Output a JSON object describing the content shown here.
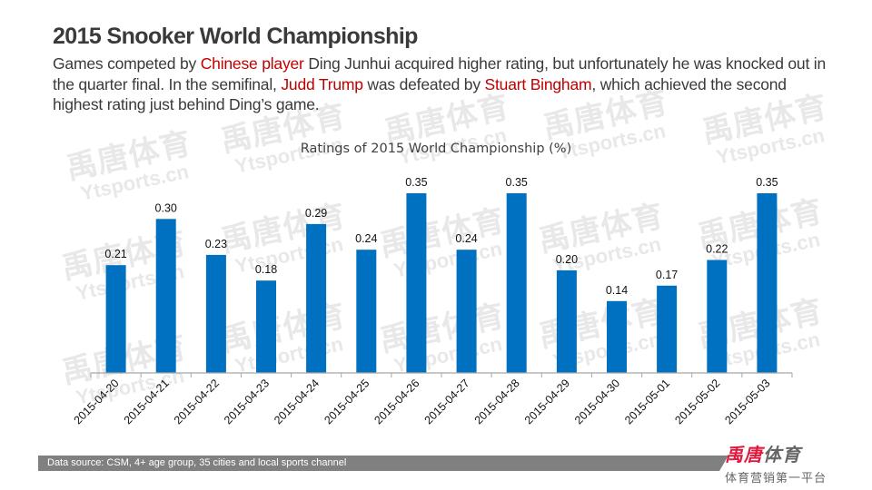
{
  "header": {
    "title": "2015 Snooker World Championship",
    "subtitle_parts": [
      {
        "text": "Games competed by ",
        "highlight": false
      },
      {
        "text": "Chinese player",
        "highlight": true
      },
      {
        "text": " Ding Junhui acquired higher rating, but unfortunately he was knocked out in the quarter final.  In the semifinal, ",
        "highlight": false
      },
      {
        "text": "Judd Trump",
        "highlight": true
      },
      {
        "text": " was defeated by ",
        "highlight": false
      },
      {
        "text": "Stuart Bingham",
        "highlight": true
      },
      {
        "text": ", which achieved the second highest rating just behind Ding’s game.",
        "highlight": false
      }
    ]
  },
  "colors": {
    "bar": "#0070c0",
    "highlight": "#c00000",
    "axis": "#a6a6a6",
    "footer_bg": "#808080",
    "logo_red": "#e0193c"
  },
  "watermark": {
    "cn": "禹唐体育",
    "en": "Ytsports.cn"
  },
  "chart_data": {
    "type": "bar",
    "title": "Ratings of 2015 World Championship (%)",
    "xlabel": "",
    "ylabel": "",
    "ylim": [
      0,
      0.4
    ],
    "grid": false,
    "legend": "none",
    "categories": [
      "2015-04-20",
      "2015-04-21",
      "2015-04-22",
      "2015-04-23",
      "2015-04-24",
      "2015-04-25",
      "2015-04-26",
      "2015-04-27",
      "2015-04-28",
      "2015-04-29",
      "2015-04-30",
      "2015-05-01",
      "2015-05-02",
      "2015-05-03"
    ],
    "values": [
      0.21,
      0.3,
      0.23,
      0.18,
      0.29,
      0.24,
      0.35,
      0.24,
      0.35,
      0.2,
      0.14,
      0.17,
      0.22,
      0.35
    ],
    "data_labels": [
      "0.21",
      "0.30",
      "0.23",
      "0.18",
      "0.29",
      "0.24",
      "0.35",
      "0.24",
      "0.35",
      "0.20",
      "0.14",
      "0.17",
      "0.22",
      "0.35"
    ]
  },
  "footer": {
    "source": "Data source: CSM, 4+ age group, 35 cities and local sports channel",
    "logo_red": "禹唐",
    "logo_grey": "体育",
    "tagline": "体育营销第一平台"
  }
}
